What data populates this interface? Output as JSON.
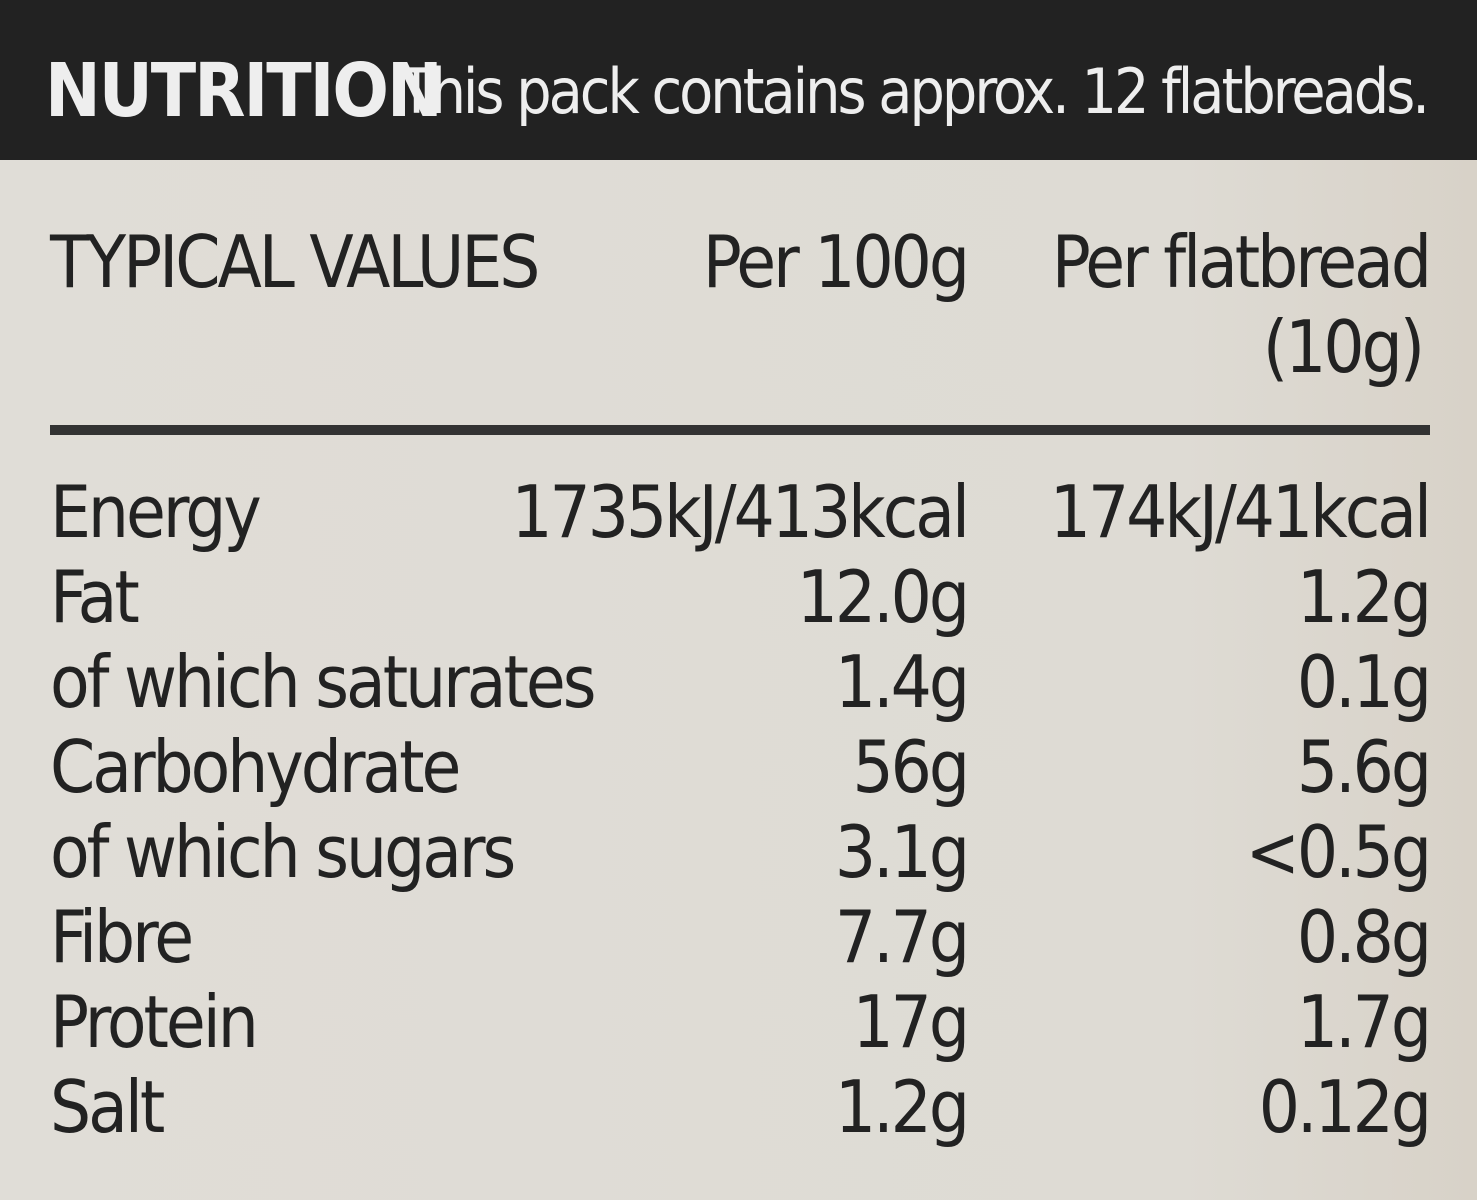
{
  "header": {
    "title": "NUTRITION",
    "note": "This pack contains approx. 12 flatbreads."
  },
  "table": {
    "columns": [
      "TYPICAL VALUES",
      "Per 100g",
      "Per flatbread",
      "(10g)"
    ],
    "rows": [
      [
        "Energy",
        "1735kJ/413kcal",
        "174kJ/41kcal"
      ],
      [
        "Fat",
        "12.0g",
        "1.2g"
      ],
      [
        "of which saturates",
        "1.4g",
        "0.1g"
      ],
      [
        "Carbohydrate",
        "56g",
        "5.6g"
      ],
      [
        "of which sugars",
        "3.1g",
        "<0.5g"
      ],
      [
        "Fibre",
        "7.7g",
        "0.8g"
      ],
      [
        "Protein",
        "17g",
        "1.7g"
      ],
      [
        "Salt",
        "1.2g",
        "0.12g"
      ]
    ]
  }
}
